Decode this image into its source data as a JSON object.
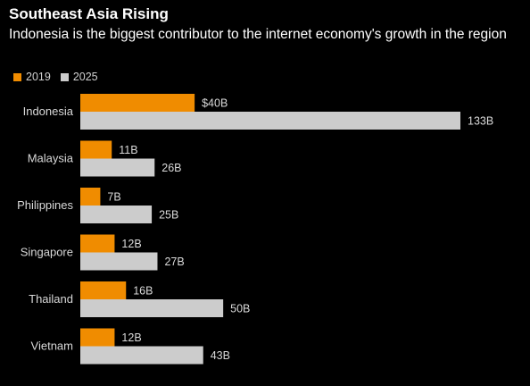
{
  "header": {
    "title": "Southeast Asia Rising",
    "subtitle": "Indonesia is the biggest contributor to the internet economy's growth in the region"
  },
  "colors": {
    "background": "#000000",
    "series_2019": "#f08c00",
    "series_2025": "#cccccc",
    "text": "#ffffff",
    "label": "#d9d9d9"
  },
  "chart_data": {
    "type": "bar",
    "orientation": "horizontal",
    "title": "Southeast Asia Rising",
    "subtitle": "Indonesia is the biggest contributor to the internet economy's growth in the region",
    "categories": [
      "Indonesia",
      "Malaysia",
      "Philippines",
      "Singapore",
      "Thailand",
      "Vietnam"
    ],
    "series": [
      {
        "name": "2019",
        "color": "#f08c00",
        "values": [
          40,
          11,
          7,
          12,
          16,
          12
        ],
        "labels": [
          "$40B",
          "11B",
          "7B",
          "12B",
          "16B",
          "12B"
        ]
      },
      {
        "name": "2025",
        "color": "#cccccc",
        "values": [
          133,
          26,
          25,
          27,
          50,
          43
        ],
        "labels": [
          "133B",
          "26B",
          "25B",
          "27B",
          "50B",
          "43B"
        ]
      }
    ],
    "unit": "B",
    "xlim": [
      0,
      133
    ],
    "legend_position": "top-left",
    "grid": false
  }
}
